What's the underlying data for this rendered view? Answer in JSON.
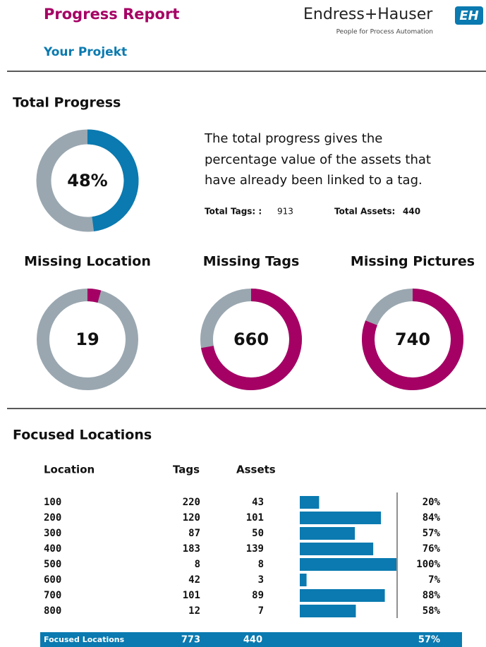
{
  "header": {
    "title": "Progress Report",
    "subtitle": "Your Projekt",
    "brand": "Endress+Hauser",
    "tagline": "People for Process Automation",
    "logo": "EH"
  },
  "total_progress": {
    "heading": "Total Progress",
    "value": 48,
    "value_label": "48%",
    "description": [
      "The total progress gives the",
      "percentage value of the assets that",
      "have already been linked to a tag."
    ],
    "total_tags_label": "Total Tags: :",
    "total_tags": 913,
    "total_assets_label": "Total Assets:",
    "total_assets": 440
  },
  "missing": [
    {
      "heading": "Missing Location",
      "value": 19
    },
    {
      "heading": "Missing Tags",
      "value": 660
    },
    {
      "heading": "Missing Pictures",
      "value": 740
    }
  ],
  "focused": {
    "heading": "Focused Locations",
    "columns": [
      "Location",
      "Tags",
      "Assets"
    ],
    "rows": [
      {
        "location": "100",
        "tags": 220,
        "assets": 43,
        "percent": 20,
        "percent_label": "20%"
      },
      {
        "location": "200",
        "tags": 120,
        "assets": 101,
        "percent": 84,
        "percent_label": "84%"
      },
      {
        "location": "300",
        "tags": 87,
        "assets": 50,
        "percent": 57,
        "percent_label": "57%"
      },
      {
        "location": "400",
        "tags": 183,
        "assets": 139,
        "percent": 76,
        "percent_label": "76%"
      },
      {
        "location": "500",
        "tags": 8,
        "assets": 8,
        "percent": 100,
        "percent_label": "100%"
      },
      {
        "location": "600",
        "tags": 42,
        "assets": 3,
        "percent": 7,
        "percent_label": "7%"
      },
      {
        "location": "700",
        "tags": 101,
        "assets": 89,
        "percent": 88,
        "percent_label": "88%"
      },
      {
        "location": "800",
        "tags": 12,
        "assets": 7,
        "percent": 58,
        "percent_label": "58%"
      }
    ],
    "total": {
      "label": "Focused Locations",
      "tags": 773,
      "assets": 440,
      "percent": 57,
      "percent_label": "57%"
    }
  }
}
